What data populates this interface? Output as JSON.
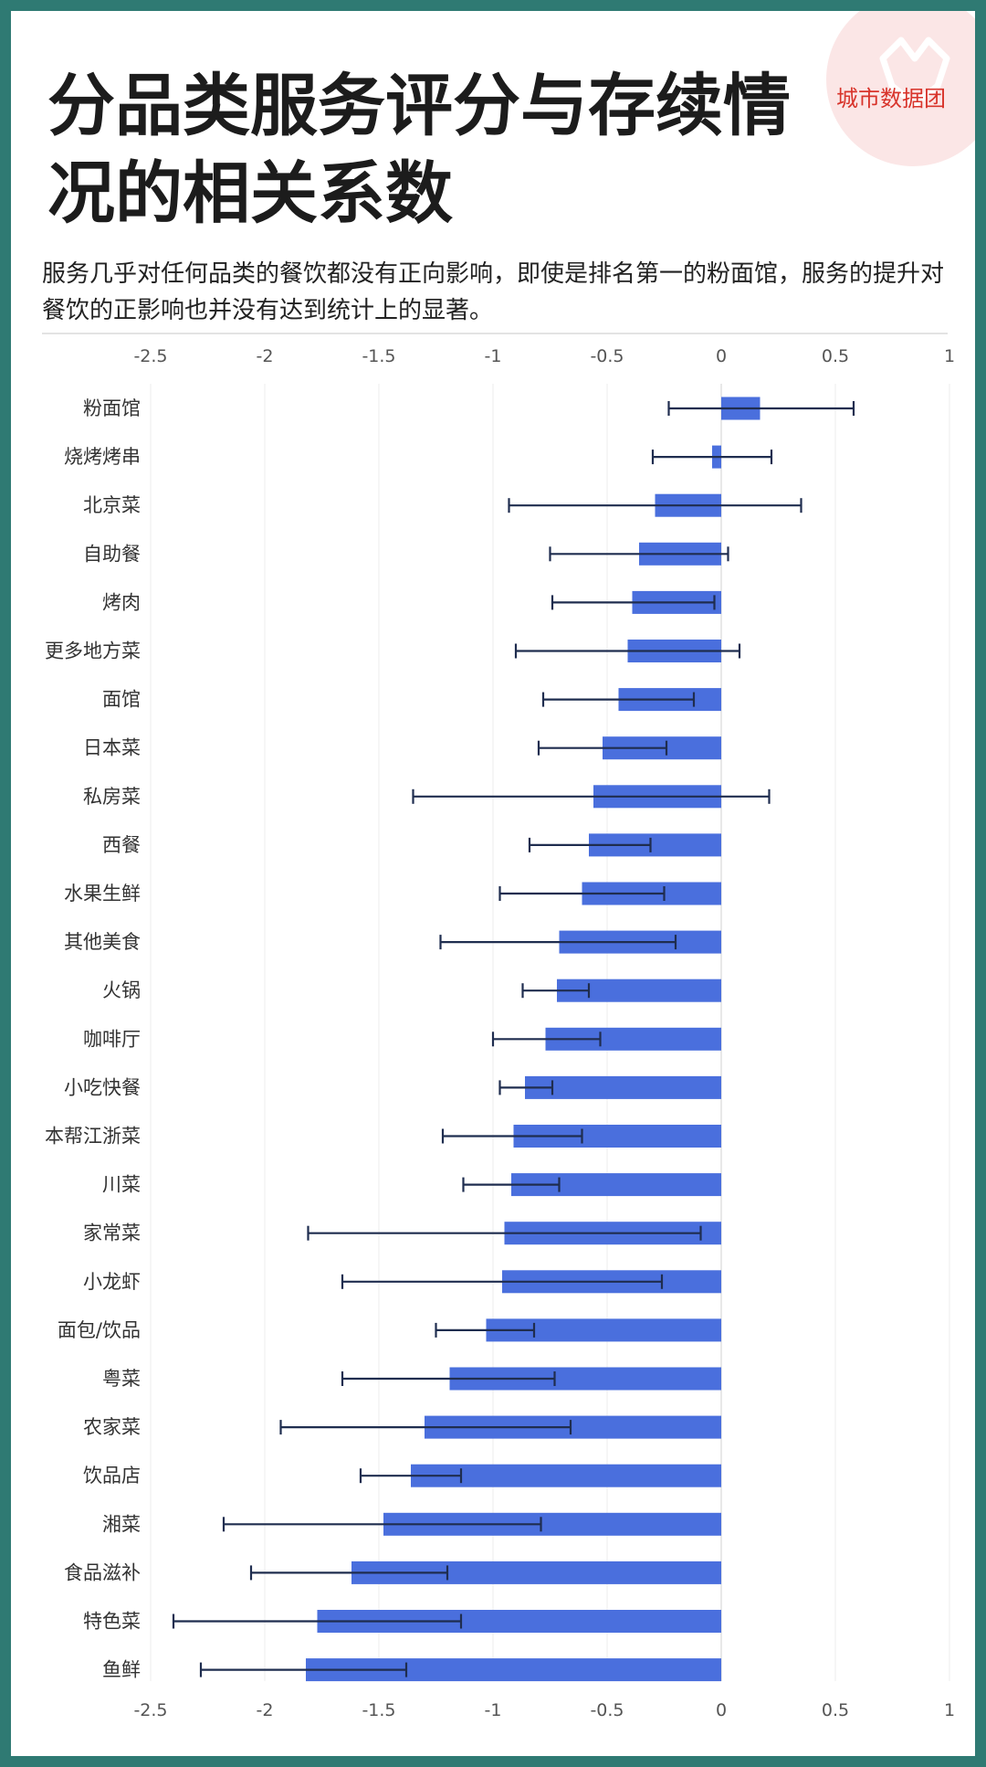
{
  "header": {
    "title": "分品类服务评分与存续情况的相关系数",
    "subtitle": "服务几乎对任何品类的餐饮都没有正向影响，即使是排名第一的粉面馆，服务的提升对餐饮的正影响也并没有达到统计上的显著。",
    "brand": "城市数据团"
  },
  "colors": {
    "frame": "#2f7a73",
    "bar": "#4a6fdd",
    "error_bar": "#1f2d4f",
    "brand": "#d8342b",
    "logo_bg": "#fbe6e6"
  },
  "chart_data": {
    "type": "bar",
    "orientation": "horizontal",
    "xlim": [
      -2.5,
      1
    ],
    "xticks": [
      "-2.5",
      "-2",
      "-1.5",
      "-1",
      "-0.5",
      "0",
      "0.5",
      "1"
    ],
    "xtick_values": [
      -2.5,
      -2,
      -1.5,
      -1,
      -0.5,
      0,
      0.5,
      1
    ],
    "grid": true,
    "xaxis_top_and_bottom": true,
    "categories": [
      "粉面馆",
      "烧烤烤串",
      "北京菜",
      "自助餐",
      "烤肉",
      "更多地方菜",
      "面馆",
      "日本菜",
      "私房菜",
      "西餐",
      "水果生鲜",
      "其他美食",
      "火锅",
      "咖啡厅",
      "小吃快餐",
      "本帮江浙菜",
      "川菜",
      "家常菜",
      "小龙虾",
      "面包/饮品",
      "粤菜",
      "农家菜",
      "饮品店",
      "湘菜",
      "食品滋补",
      "特色菜",
      "鱼鲜"
    ],
    "values": [
      0.17,
      -0.04,
      -0.29,
      -0.36,
      -0.39,
      -0.41,
      -0.45,
      -0.52,
      -0.56,
      -0.58,
      -0.61,
      -0.71,
      -0.72,
      -0.77,
      -0.86,
      -0.91,
      -0.92,
      -0.95,
      -0.96,
      -1.03,
      -1.19,
      -1.3,
      -1.36,
      -1.48,
      -1.62,
      -1.77,
      -1.82
    ],
    "error_low": [
      -0.23,
      -0.3,
      -0.93,
      -0.75,
      -0.74,
      -0.9,
      -0.78,
      -0.8,
      -1.35,
      -0.84,
      -0.97,
      -1.23,
      -0.87,
      -1.0,
      -0.97,
      -1.22,
      -1.13,
      -1.81,
      -1.66,
      -1.25,
      -1.66,
      -1.93,
      -1.58,
      -2.18,
      -2.06,
      -2.4,
      -2.28
    ],
    "error_high": [
      0.58,
      0.22,
      0.35,
      0.03,
      -0.03,
      0.08,
      -0.12,
      -0.24,
      0.21,
      -0.31,
      -0.25,
      -0.2,
      -0.58,
      -0.53,
      -0.74,
      -0.61,
      -0.71,
      -0.09,
      -0.26,
      -0.82,
      -0.73,
      -0.66,
      -1.14,
      -0.79,
      -1.2,
      -1.14,
      -1.38
    ]
  }
}
